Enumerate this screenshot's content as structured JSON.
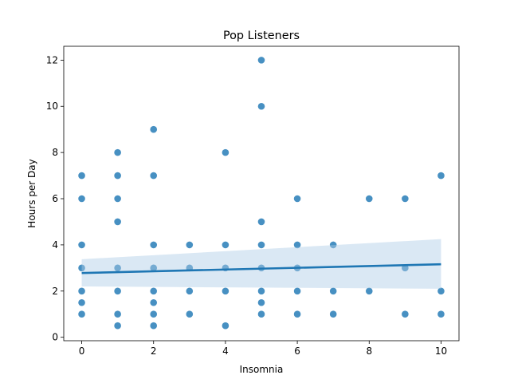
{
  "chart_data": {
    "type": "scatter",
    "title": "Pop Listeners",
    "xlabel": "Insomnia",
    "ylabel": "Hours per Day",
    "xlim": [
      -0.5,
      10.5
    ],
    "ylim": [
      -0.15,
      12.6
    ],
    "xticks": [
      0,
      2,
      4,
      6,
      8,
      10
    ],
    "yticks": [
      0,
      2,
      4,
      6,
      8,
      10,
      12
    ],
    "grid": false,
    "legend": "none",
    "point_color": "#1f77b4",
    "regression": {
      "x": [
        0,
        10
      ],
      "y": [
        2.78,
        3.16
      ],
      "ci_lower": [
        2.2,
        2.1
      ],
      "ci_upper": [
        3.38,
        4.25
      ],
      "line_color": "#1f77b4",
      "band_color": "#aecde6"
    },
    "points": [
      {
        "x": 0,
        "y": 7
      },
      {
        "x": 0,
        "y": 6
      },
      {
        "x": 0,
        "y": 4
      },
      {
        "x": 0,
        "y": 3
      },
      {
        "x": 0,
        "y": 2
      },
      {
        "x": 0,
        "y": 1.5
      },
      {
        "x": 0,
        "y": 1
      },
      {
        "x": 1,
        "y": 8
      },
      {
        "x": 1,
        "y": 7
      },
      {
        "x": 1,
        "y": 6
      },
      {
        "x": 1,
        "y": 5
      },
      {
        "x": 1,
        "y": 3
      },
      {
        "x": 1,
        "y": 2
      },
      {
        "x": 1,
        "y": 1
      },
      {
        "x": 1,
        "y": 0.5
      },
      {
        "x": 2,
        "y": 9
      },
      {
        "x": 2,
        "y": 7
      },
      {
        "x": 2,
        "y": 4
      },
      {
        "x": 2,
        "y": 3
      },
      {
        "x": 2,
        "y": 2
      },
      {
        "x": 2,
        "y": 1.5
      },
      {
        "x": 2,
        "y": 1
      },
      {
        "x": 2,
        "y": 0.5
      },
      {
        "x": 3,
        "y": 4
      },
      {
        "x": 3,
        "y": 3
      },
      {
        "x": 3,
        "y": 2
      },
      {
        "x": 3,
        "y": 1
      },
      {
        "x": 4,
        "y": 8
      },
      {
        "x": 4,
        "y": 4
      },
      {
        "x": 4,
        "y": 3
      },
      {
        "x": 4,
        "y": 2
      },
      {
        "x": 4,
        "y": 0.5
      },
      {
        "x": 5,
        "y": 12
      },
      {
        "x": 5,
        "y": 10
      },
      {
        "x": 5,
        "y": 5
      },
      {
        "x": 5,
        "y": 4
      },
      {
        "x": 5,
        "y": 3
      },
      {
        "x": 5,
        "y": 2
      },
      {
        "x": 5,
        "y": 1.5
      },
      {
        "x": 5,
        "y": 1
      },
      {
        "x": 6,
        "y": 6
      },
      {
        "x": 6,
        "y": 4
      },
      {
        "x": 6,
        "y": 3
      },
      {
        "x": 6,
        "y": 2
      },
      {
        "x": 6,
        "y": 1
      },
      {
        "x": 7,
        "y": 4
      },
      {
        "x": 7,
        "y": 2
      },
      {
        "x": 7,
        "y": 1
      },
      {
        "x": 8,
        "y": 6
      },
      {
        "x": 8,
        "y": 2
      },
      {
        "x": 9,
        "y": 6
      },
      {
        "x": 9,
        "y": 3
      },
      {
        "x": 9,
        "y": 1
      },
      {
        "x": 10,
        "y": 7
      },
      {
        "x": 10,
        "y": 2
      },
      {
        "x": 10,
        "y": 1
      }
    ]
  }
}
